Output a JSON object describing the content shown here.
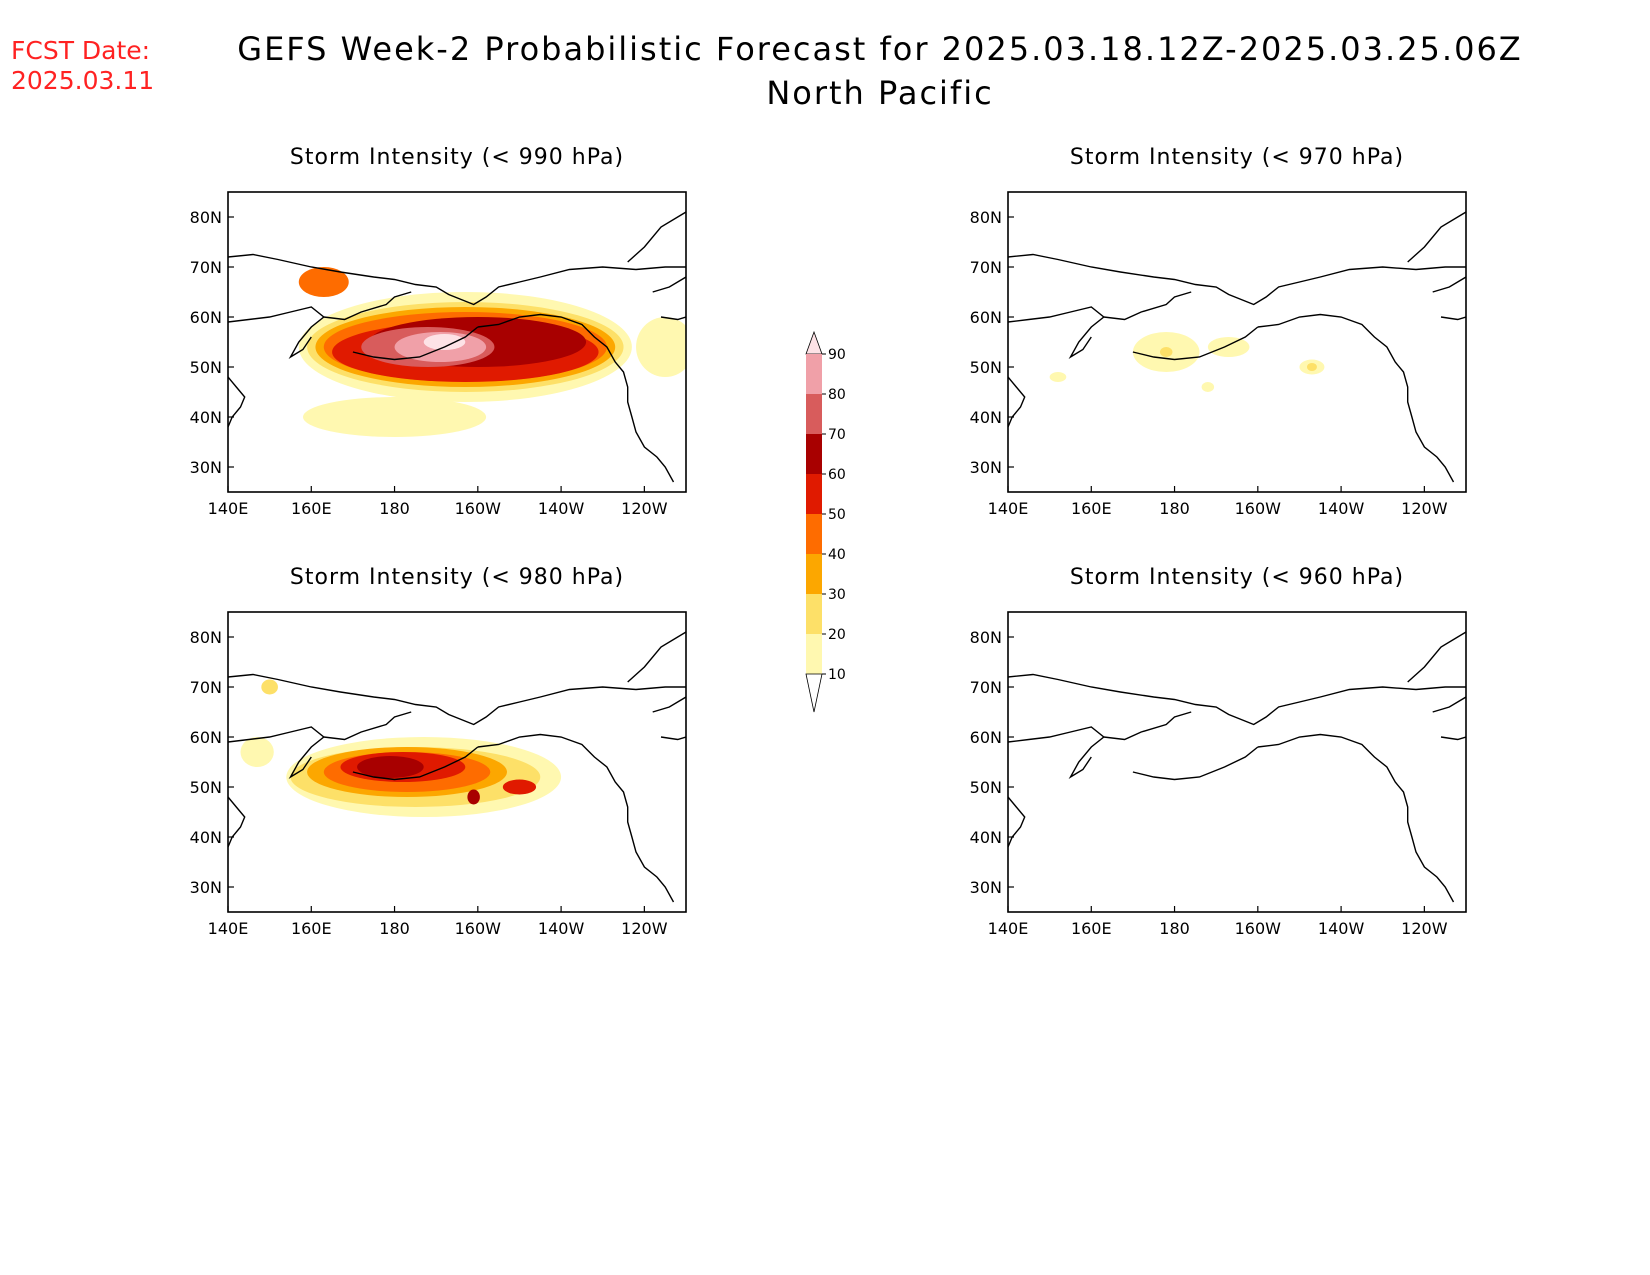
{
  "fcst_date": {
    "label": "FCST Date:",
    "value": "2025.03.11"
  },
  "title": {
    "line1": "GEFS Week-2 Probabilistic Forecast for 2025.03.18.12Z-2025.03.25.06Z",
    "line2": "North Pacific"
  },
  "axes": {
    "lon_labels": [
      "140E",
      "160E",
      "180",
      "160W",
      "140W",
      "120W"
    ],
    "lat_labels": [
      "80N",
      "70N",
      "60N",
      "50N",
      "40N",
      "30N"
    ],
    "lon_range": [
      140,
      250
    ],
    "lat_range": [
      25,
      85
    ]
  },
  "colorbar": {
    "levels": [
      10,
      20,
      30,
      40,
      50,
      60,
      70,
      80,
      90
    ],
    "colors": [
      "#fff8b0",
      "#fde068",
      "#fca700",
      "#fe6c00",
      "#e01a00",
      "#a80000",
      "#d85c5c",
      "#f0a0a8",
      "#fde2e6"
    ]
  },
  "panels": [
    {
      "id": "p990",
      "title": "Storm Intensity (< 990 hPa)",
      "blobs": [
        {
          "lon": 197,
          "lat": 54,
          "rx": 40,
          "ry": 11,
          "level": 10
        },
        {
          "lon": 180,
          "lat": 40,
          "rx": 22,
          "ry": 4,
          "level": 10
        },
        {
          "lon": 245,
          "lat": 54,
          "rx": 7,
          "ry": 6,
          "level": 10
        },
        {
          "lon": 197,
          "lat": 54,
          "rx": 38,
          "ry": 9,
          "level": 20
        },
        {
          "lon": 197,
          "lat": 54,
          "rx": 36,
          "ry": 8,
          "level": 30
        },
        {
          "lon": 197,
          "lat": 54,
          "rx": 34,
          "ry": 7,
          "level": 40
        },
        {
          "lon": 163,
          "lat": 67,
          "rx": 6,
          "ry": 3,
          "level": 40
        },
        {
          "lon": 197,
          "lat": 53,
          "rx": 32,
          "ry": 6,
          "level": 50
        },
        {
          "lon": 200,
          "lat": 55,
          "rx": 26,
          "ry": 5,
          "level": 60
        },
        {
          "lon": 188,
          "lat": 54,
          "rx": 16,
          "ry": 4,
          "level": 70
        },
        {
          "lon": 191,
          "lat": 54,
          "rx": 11,
          "ry": 3,
          "level": 80
        },
        {
          "lon": 192,
          "lat": 55,
          "rx": 5,
          "ry": 1.6,
          "level": 90
        }
      ]
    },
    {
      "id": "p970",
      "title": "Storm Intensity (< 970 hPa)",
      "blobs": [
        {
          "lon": 178,
          "lat": 53,
          "rx": 8,
          "ry": 4,
          "level": 10
        },
        {
          "lon": 193,
          "lat": 54,
          "rx": 5,
          "ry": 2,
          "level": 10
        },
        {
          "lon": 152,
          "lat": 48,
          "rx": 2,
          "ry": 1,
          "level": 10
        },
        {
          "lon": 213,
          "lat": 50,
          "rx": 3,
          "ry": 1.5,
          "level": 10
        },
        {
          "lon": 188,
          "lat": 46,
          "rx": 1.5,
          "ry": 1,
          "level": 10
        },
        {
          "lon": 178,
          "lat": 53,
          "rx": 1.5,
          "ry": 1,
          "level": 20
        },
        {
          "lon": 213,
          "lat": 50,
          "rx": 1.2,
          "ry": 0.8,
          "level": 20
        }
      ]
    },
    {
      "id": "p980",
      "title": "Storm Intensity (< 980 hPa)",
      "blobs": [
        {
          "lon": 187,
          "lat": 52,
          "rx": 33,
          "ry": 8,
          "level": 10
        },
        {
          "lon": 147,
          "lat": 57,
          "rx": 4,
          "ry": 3,
          "level": 10
        },
        {
          "lon": 150,
          "lat": 70,
          "rx": 2,
          "ry": 1.5,
          "level": 20
        },
        {
          "lon": 185,
          "lat": 52,
          "rx": 30,
          "ry": 6,
          "level": 20
        },
        {
          "lon": 183,
          "lat": 53,
          "rx": 24,
          "ry": 5,
          "level": 30
        },
        {
          "lon": 183,
          "lat": 53,
          "rx": 20,
          "ry": 4,
          "level": 40
        },
        {
          "lon": 182,
          "lat": 54,
          "rx": 15,
          "ry": 3,
          "level": 50
        },
        {
          "lon": 179,
          "lat": 54,
          "rx": 8,
          "ry": 2.2,
          "level": 60
        },
        {
          "lon": 210,
          "lat": 50,
          "rx": 4,
          "ry": 1.5,
          "level": 50
        },
        {
          "lon": 199,
          "lat": 48,
          "rx": 1.5,
          "ry": 1.5,
          "level": 60
        }
      ]
    },
    {
      "id": "p960",
      "title": "Storm Intensity (< 960 hPa)",
      "blobs": []
    }
  ]
}
